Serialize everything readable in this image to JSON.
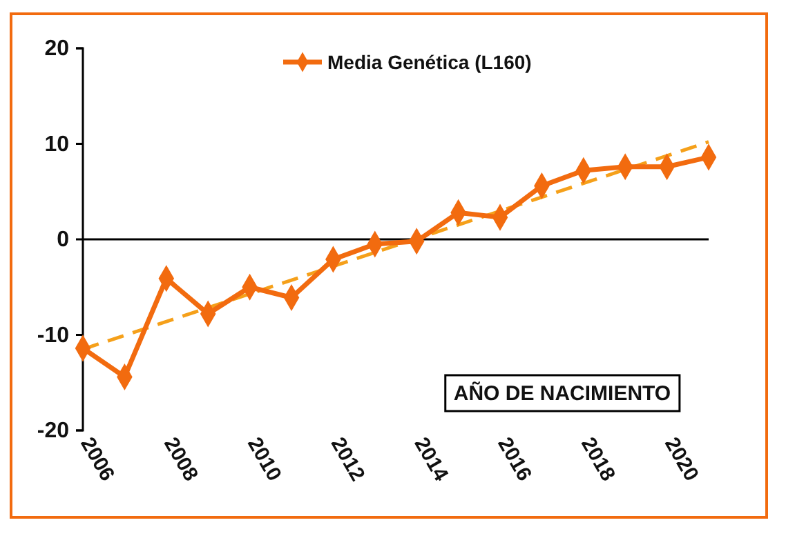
{
  "chart_data": {
    "type": "line",
    "xlabel": "AÑO DE NACIMIENTO",
    "x": [
      2006,
      2007,
      2008,
      2009,
      2010,
      2011,
      2012,
      2013,
      2014,
      2015,
      2016,
      2017,
      2018,
      2019,
      2020,
      2021
    ],
    "series": [
      {
        "name": "Media Genética (L160)",
        "color": "#f26b0f",
        "marker": "diamond",
        "line_style": "solid",
        "values": [
          -11.4,
          -14.4,
          -4.1,
          -7.8,
          -5.0,
          -6.1,
          -2.1,
          -0.5,
          -0.2,
          2.8,
          2.3,
          5.6,
          7.2,
          7.6,
          7.6,
          8.6
        ]
      },
      {
        "type": "line",
        "color": "#f5a01a",
        "marker": "none",
        "line_style": "dashed",
        "x": [
          2006,
          2021
        ],
        "values": [
          -11.5,
          10.2
        ]
      }
    ],
    "xlim": [
      2006,
      2021
    ],
    "xticks": [
      2006,
      2008,
      2010,
      2012,
      2014,
      2016,
      2018,
      2020
    ],
    "ylim": [
      -20,
      20
    ],
    "yticks": [
      -20,
      -10,
      0,
      10,
      20
    ],
    "legend": "top"
  }
}
